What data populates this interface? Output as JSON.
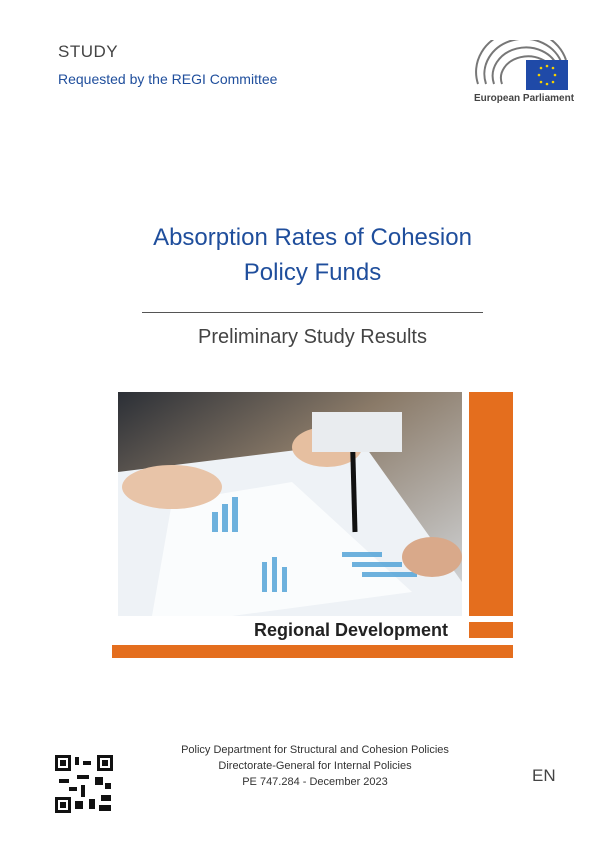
{
  "header": {
    "label": "STUDY",
    "requested_by": "Requested by the REGI Committee",
    "logo_text": "European Parliament"
  },
  "title": {
    "lines": [
      "Absorption Rates of Cohesion",
      "Policy Funds"
    ]
  },
  "subtitle": "Preliminary Study Results",
  "banner": "Regional Development",
  "footer": {
    "lines": [
      "Policy Department for Structural and Cohesion Policies",
      "Directorate-General  for Internal Policies",
      "PE 747.284 - December 2023"
    ],
    "language": "EN"
  }
}
